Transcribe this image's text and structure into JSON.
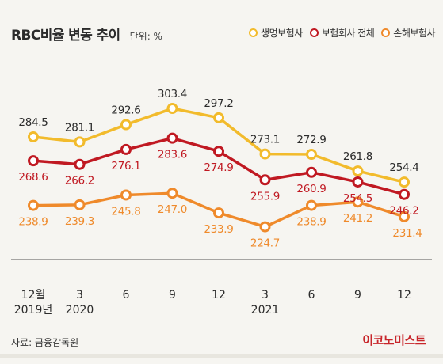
{
  "header": {
    "title": "RBC비율 변동 추이",
    "unit": "단위: %"
  },
  "legend": [
    {
      "label": "생명보험사",
      "color": "#f2bb2c"
    },
    {
      "label": "보험회사 전체",
      "color": "#c01922"
    },
    {
      "label": "손해보험사",
      "color": "#ef8a2b"
    }
  ],
  "chart_data": {
    "type": "line",
    "title": "RBC비율 변동 추이",
    "unit": "단위: %",
    "x_labels": [
      [
        "12월",
        "2019년"
      ],
      [
        "3",
        "2020"
      ],
      [
        "6",
        ""
      ],
      [
        "9",
        ""
      ],
      [
        "12",
        ""
      ],
      [
        "3",
        "2021"
      ],
      [
        "6",
        ""
      ],
      [
        "9",
        ""
      ],
      [
        "12",
        ""
      ]
    ],
    "ylim": [
      215,
      315
    ],
    "grid": false,
    "legend_position": "top-right",
    "series": [
      {
        "name": "생명보험사",
        "color": "#f2bb2c",
        "label_color": "#2b2b2b",
        "values": [
          284.5,
          281.1,
          292.6,
          303.4,
          297.2,
          273.1,
          272.9,
          261.8,
          254.4
        ],
        "labels": [
          "284.5",
          "281.1",
          "292.6",
          "303.4",
          "297.2",
          "273.1",
          "272.9",
          "261.8",
          "254.4"
        ]
      },
      {
        "name": "보험회사 전체",
        "color": "#c01922",
        "label_color": "#c01922",
        "values": [
          268.6,
          266.2,
          276.1,
          283.6,
          274.9,
          255.9,
          260.9,
          254.5,
          246.2
        ],
        "labels": [
          "268.6",
          "266.2",
          "276.1",
          "283.6",
          "274.9",
          "255.9",
          "260.9",
          "254.5",
          "246.2"
        ]
      },
      {
        "name": "손해보험사",
        "color": "#ef8a2b",
        "label_color": "#ef8a2b",
        "values": [
          238.9,
          239.3,
          245.8,
          247.0,
          233.9,
          224.7,
          238.9,
          241.2,
          231.4
        ],
        "labels": [
          "238.9",
          "239.3",
          "245.8",
          "247.0",
          "233.9",
          "224.7",
          "238.9",
          "241.2",
          "231.4"
        ]
      }
    ]
  },
  "footer": {
    "source": "자료: 금융감독원",
    "logo": "이코노미스트"
  }
}
